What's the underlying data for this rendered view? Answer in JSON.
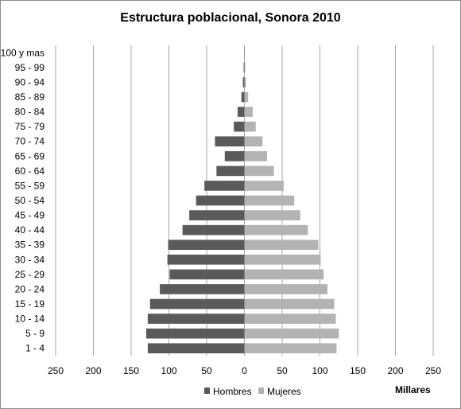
{
  "chart_data": {
    "type": "bar",
    "orientation": "horizontal",
    "title": "Estructura poblacional, Sonora 2010",
    "unit_label": "Millares",
    "categories": [
      "1 - 4",
      "5 - 9",
      "10 - 14",
      "15 - 19",
      "20 - 24",
      "25 - 29",
      "30 - 34",
      "35 - 39",
      "40 - 44",
      "45 - 49",
      "50 - 54",
      "55 - 59",
      "60 - 64",
      "65 - 69",
      "70 - 74",
      "75 - 79",
      "80 - 84",
      "85 - 89",
      "90 - 94",
      "95 - 99",
      "100 y mas"
    ],
    "xlim": [
      -250,
      250
    ],
    "xticks": [
      -250,
      -200,
      -150,
      -100,
      -50,
      0,
      50,
      100,
      150,
      200,
      250
    ],
    "xtick_labels": [
      "250",
      "200",
      "150",
      "100",
      "50",
      "0",
      "50",
      "100",
      "150",
      "200",
      "250"
    ],
    "grid": true,
    "legend_position": "bottom",
    "series": [
      {
        "name": "Hombres",
        "color": "#5a5a5a",
        "values": [
          128,
          130,
          128,
          125,
          112,
          99,
          102,
          101,
          82,
          73,
          64,
          53,
          37,
          26,
          39,
          14,
          9,
          4,
          2,
          1,
          0.5
        ]
      },
      {
        "name": "Mujeres",
        "color": "#b3b3b3",
        "values": [
          122,
          125,
          121,
          119,
          110,
          105,
          101,
          98,
          84,
          74,
          66,
          52,
          39,
          30,
          24,
          15,
          11,
          5,
          2,
          1,
          0.5
        ]
      }
    ]
  }
}
